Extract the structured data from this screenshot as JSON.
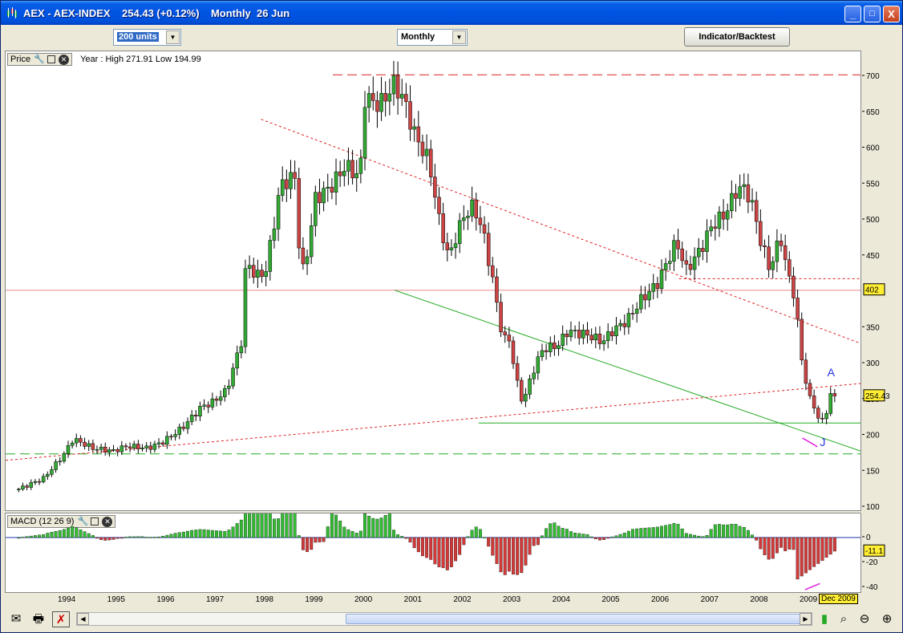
{
  "window": {
    "title": "AEX - AEX-INDEX    254.43 (+0.12%)    Monthly  26 Jun",
    "minimize": "_",
    "maximize": "□",
    "close": "X"
  },
  "toolbar": {
    "units_value": "200 units",
    "period_value": "Monthly",
    "indicator_button": "Indicator/Backtest"
  },
  "price_pane": {
    "label": "Price",
    "info": "Year : High 271.91 Low 194.99",
    "y_ticks": [
      "700",
      "650",
      "600",
      "550",
      "500",
      "450",
      "350",
      "300",
      "250",
      "200",
      "150",
      "100"
    ],
    "current_price_badge": "254.43",
    "level_badge": "402",
    "annotation_a": "A",
    "annotation_j": "J"
  },
  "macd_pane": {
    "label": "MACD (12 26 9)",
    "y_ticks": [
      "0",
      "-20",
      "-40"
    ],
    "value_badge": "-11.1"
  },
  "x_axis": {
    "labels": [
      "1994",
      "1995",
      "1996",
      "1997",
      "1998",
      "1999",
      "2000",
      "2001",
      "2002",
      "2003",
      "2004",
      "2005",
      "2006",
      "2007",
      "2008",
      "2009"
    ],
    "date_badge": "Dec 2009"
  },
  "colors": {
    "up_candle": "#33aa33",
    "down_candle": "#cc4444",
    "trend_red": "#dd2222",
    "trend_green": "#22aa22",
    "macd_pos": "#33bb33",
    "macd_neg": "#d23a3a"
  },
  "chart_data": {
    "type": "candlestick",
    "title": "AEX - AEX-INDEX",
    "period": "Monthly",
    "ylim": [
      100,
      720
    ],
    "x_range": [
      1993.0,
      2010.0
    ],
    "close_series": [
      [
        1993.0,
        125
      ],
      [
        1993.5,
        140
      ],
      [
        1993.9,
        172
      ],
      [
        1994.1,
        195
      ],
      [
        1994.5,
        182
      ],
      [
        1994.9,
        178
      ],
      [
        1995.2,
        185
      ],
      [
        1995.6,
        182
      ],
      [
        1995.9,
        190
      ],
      [
        1996.3,
        210
      ],
      [
        1996.7,
        240
      ],
      [
        1996.9,
        245
      ],
      [
        1997.2,
        262
      ],
      [
        1997.5,
        330
      ],
      [
        1997.6,
        445
      ],
      [
        1997.8,
        420
      ],
      [
        1998.0,
        430
      ],
      [
        1998.3,
        550
      ],
      [
        1998.6,
        560
      ],
      [
        1998.7,
        420
      ],
      [
        1998.8,
        440
      ],
      [
        1999.0,
        530
      ],
      [
        1999.3,
        545
      ],
      [
        1999.6,
        575
      ],
      [
        1999.9,
        560
      ],
      [
        2000.0,
        670
      ],
      [
        2000.3,
        660
      ],
      [
        2000.6,
        690
      ],
      [
        2000.8,
        665
      ],
      [
        2001.0,
        620
      ],
      [
        2001.3,
        580
      ],
      [
        2001.5,
        500
      ],
      [
        2001.7,
        445
      ],
      [
        2001.8,
        470
      ],
      [
        2002.0,
        505
      ],
      [
        2002.2,
        520
      ],
      [
        2002.4,
        480
      ],
      [
        2002.6,
        410
      ],
      [
        2002.8,
        330
      ],
      [
        2002.9,
        340
      ],
      [
        2003.1,
        265
      ],
      [
        2003.2,
        245
      ],
      [
        2003.4,
        290
      ],
      [
        2003.6,
        320
      ],
      [
        2003.9,
        325
      ],
      [
        2004.1,
        345
      ],
      [
        2004.5,
        340
      ],
      [
        2004.8,
        330
      ],
      [
        2005.0,
        345
      ],
      [
        2005.3,
        360
      ],
      [
        2005.6,
        390
      ],
      [
        2005.9,
        410
      ],
      [
        2006.1,
        440
      ],
      [
        2006.3,
        470
      ],
      [
        2006.5,
        430
      ],
      [
        2006.8,
        460
      ],
      [
        2007.0,
        490
      ],
      [
        2007.3,
        510
      ],
      [
        2007.5,
        540
      ],
      [
        2007.7,
        545
      ],
      [
        2007.9,
        505
      ],
      [
        2008.0,
        470
      ],
      [
        2008.2,
        430
      ],
      [
        2008.4,
        480
      ],
      [
        2008.5,
        440
      ],
      [
        2008.7,
        390
      ],
      [
        2008.8,
        320
      ],
      [
        2008.9,
        280
      ],
      [
        2009.0,
        250
      ],
      [
        2009.1,
        240
      ],
      [
        2009.2,
        215
      ],
      [
        2009.3,
        225
      ],
      [
        2009.4,
        255
      ],
      [
        2009.5,
        254
      ]
    ],
    "trendlines": [
      {
        "name": "resistance-top",
        "style": "dashed",
        "y": 702
      },
      {
        "name": "support-bottom",
        "style": "dashed",
        "y": 174
      },
      {
        "name": "horizontal-402",
        "style": "solid",
        "y": 402
      },
      {
        "name": "horizontal-418",
        "style": "dotted",
        "y": 418
      },
      {
        "name": "horizontal-217",
        "style": "solid",
        "y": 217
      }
    ],
    "macd": {
      "label": "MACD (12 26 9)",
      "ylim": [
        -44,
        8
      ],
      "histogram_x_range": [
        1993.0,
        2009.5
      ]
    }
  }
}
